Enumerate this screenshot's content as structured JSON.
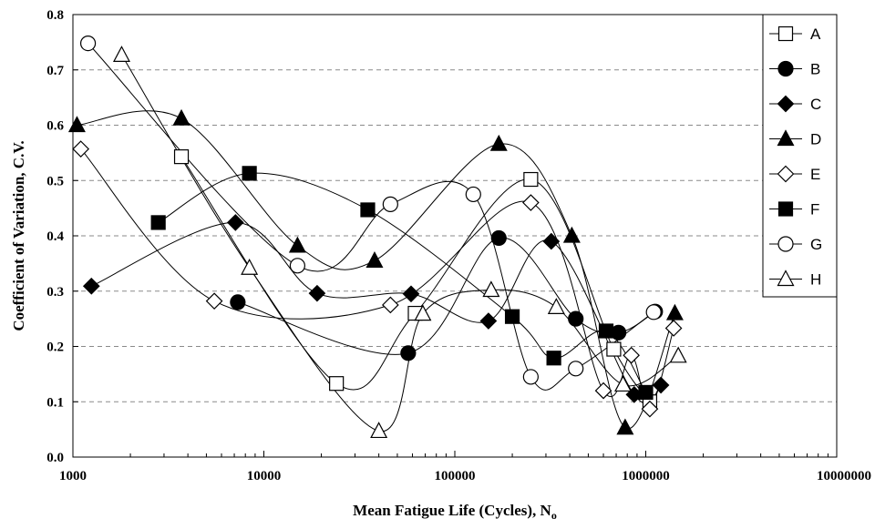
{
  "chart_data": {
    "type": "scatter",
    "xscale": "log",
    "xlim": [
      1000,
      10000000
    ],
    "ylim": [
      0.0,
      0.8
    ],
    "xticks": [
      "1000",
      "10000",
      "100000",
      "1000000",
      "10000000"
    ],
    "yticks": [
      "0.0",
      "0.1",
      "0.2",
      "0.3",
      "0.4",
      "0.5",
      "0.6",
      "0.7",
      "0.8"
    ],
    "xlabel": "Mean Fatigue Life (Cycles), N",
    "xlabel_sub": "o",
    "ylabel": "Coefficient of Variation, C.V.",
    "grid": "horizontal dashed",
    "legend_position": "right",
    "series": [
      {
        "name": "A",
        "marker": "square-open",
        "x": [
          3700,
          24000,
          62000,
          250000,
          680000,
          1050000
        ],
        "y": [
          0.543,
          0.133,
          0.26,
          0.502,
          0.195,
          0.1
        ]
      },
      {
        "name": "B",
        "marker": "circle-filled",
        "x": [
          7300,
          57000,
          170000,
          430000,
          720000,
          1120000
        ],
        "y": [
          0.28,
          0.188,
          0.396,
          0.25,
          0.225,
          0.263
        ]
      },
      {
        "name": "C",
        "marker": "diamond-filled",
        "x": [
          1250,
          7100,
          19000,
          59000,
          150000,
          320000,
          870000,
          1200000
        ],
        "y": [
          0.309,
          0.424,
          0.296,
          0.295,
          0.246,
          0.39,
          0.113,
          0.13
        ]
      },
      {
        "name": "D",
        "marker": "triangle-filled",
        "x": [
          1050,
          3700,
          15000,
          38000,
          170000,
          410000,
          780000,
          1420000
        ],
        "y": [
          0.6,
          0.612,
          0.382,
          0.355,
          0.566,
          0.4,
          0.053,
          0.26
        ]
      },
      {
        "name": "E",
        "marker": "diamond-open",
        "x": [
          1100,
          5500,
          46000,
          250000,
          600000,
          840000,
          1050000,
          1400000
        ],
        "y": [
          0.557,
          0.282,
          0.275,
          0.46,
          0.12,
          0.184,
          0.087,
          0.233
        ]
      },
      {
        "name": "F",
        "marker": "square-filled",
        "x": [
          2800,
          8400,
          35000,
          200000,
          330000,
          620000,
          1000000
        ],
        "y": [
          0.424,
          0.513,
          0.447,
          0.254,
          0.179,
          0.228,
          0.117
        ]
      },
      {
        "name": "G",
        "marker": "circle-open",
        "x": [
          1200,
          15000,
          46000,
          125000,
          250000,
          430000,
          1100000
        ],
        "y": [
          0.748,
          0.346,
          0.457,
          0.475,
          0.145,
          0.16,
          0.262
        ]
      },
      {
        "name": "H",
        "marker": "triangle-open",
        "x": [
          1800,
          8400,
          40000,
          68000,
          155000,
          340000,
          760000,
          1480000
        ],
        "y": [
          0.727,
          0.342,
          0.047,
          0.259,
          0.302,
          0.271,
          0.131,
          0.183
        ]
      }
    ]
  }
}
